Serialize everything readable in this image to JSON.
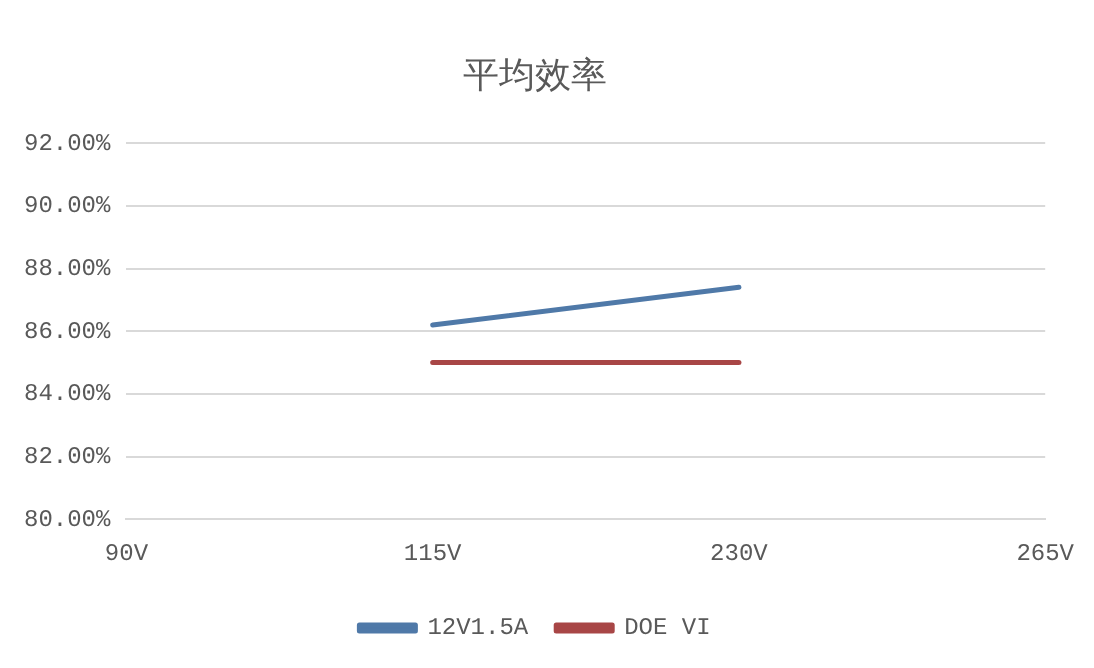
{
  "chart_data": {
    "type": "line",
    "title": "平均效率",
    "categories": [
      "90V",
      "115V",
      "230V",
      "265V"
    ],
    "series": [
      {
        "name": "12V1.5A",
        "color": "#4f79a8",
        "values": [
          null,
          86.2,
          87.4,
          null
        ]
      },
      {
        "name": "DOE VI",
        "color": "#a84646",
        "values": [
          null,
          85,
          85,
          null
        ]
      }
    ],
    "ylim": [
      80,
      92
    ],
    "yticks": [
      {
        "value": 80,
        "label": "80.00%"
      },
      {
        "value": 82,
        "label": "82.00%"
      },
      {
        "value": 84,
        "label": "84.00%"
      },
      {
        "value": 86,
        "label": "86.00%"
      },
      {
        "value": 88,
        "label": "88.00%"
      },
      {
        "value": 90,
        "label": "90.00%"
      },
      {
        "value": 92,
        "label": "92.00%"
      }
    ],
    "grid": "y",
    "legend": "bottom",
    "marker": "none",
    "line_style": "solid"
  }
}
